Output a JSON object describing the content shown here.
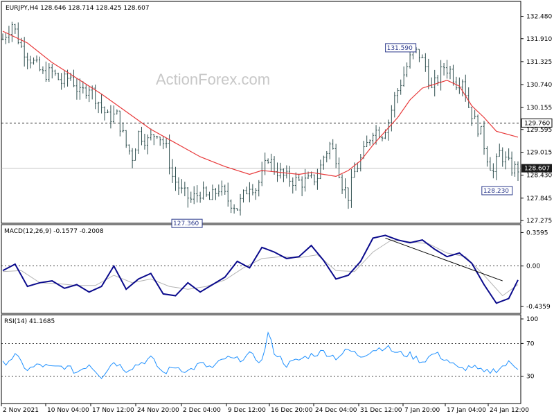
{
  "header": {
    "main": "EURJPY,H4  128.646 128.714 128.425 128.607",
    "macd": "MACD(12,26,9) -0.1577 -0.2008",
    "rsi": "RSI(14) 41.1685"
  },
  "watermark": "ActionForex.com",
  "colors": {
    "price_bars": "#2f4f4f",
    "sma": "#e8393a",
    "macd_line": "#0a0a8c",
    "signal_line": "#b4b4b4",
    "rsi_line": "#1e90ff",
    "last_price_bg": "#1a1a1a",
    "annotation_border": "#2c3a8c"
  },
  "chart_data": [
    {
      "type": "ohlc",
      "symbol": "EURJPY",
      "timeframe": "H4",
      "yticks": [
        "132.480",
        "131.910",
        "131.325",
        "130.740",
        "130.155",
        "129.595",
        "129.015",
        "128.430",
        "127.845",
        "127.275"
      ],
      "ylim": [
        127.275,
        132.79
      ],
      "xticks": [
        "2 Nov 2021",
        "10 Nov 04:00",
        "17 Nov 12:00",
        "24 Nov 20:00",
        "2 Dec 04:00",
        "9 Dec 12:00",
        "16 Dec 20:00",
        "24 Dec 04:00",
        "31 Dec 12:00",
        "7 Jan 20:00",
        "17 Jan 04:00",
        "24 Jan 12:00"
      ],
      "last_price": "128.607",
      "horizontal_level": "129.760",
      "annotations": [
        "131.590",
        "127.360",
        "128.230"
      ],
      "close_path": [
        [
          0,
          131.9
        ],
        [
          3,
          132.3
        ],
        [
          6,
          131.7
        ],
        [
          10,
          131.3
        ],
        [
          13,
          131.0
        ],
        [
          16,
          131.05
        ],
        [
          19,
          130.8
        ],
        [
          22,
          130.95
        ],
        [
          25,
          130.5
        ],
        [
          28,
          130.7
        ],
        [
          31,
          130.3
        ],
        [
          34,
          129.9
        ],
        [
          37,
          129.95
        ],
        [
          40,
          129.2
        ],
        [
          42,
          128.9
        ],
        [
          44,
          129.5
        ],
        [
          47,
          129.3
        ],
        [
          50,
          129.55
        ],
        [
          53,
          129.1
        ],
        [
          55,
          128.4
        ],
        [
          58,
          128.0
        ],
        [
          61,
          127.8
        ],
        [
          64,
          128.0
        ],
        [
          67,
          127.8
        ],
        [
          70,
          128.1
        ],
        [
          73,
          127.8
        ],
        [
          76,
          127.6
        ],
        [
          78,
          127.9
        ],
        [
          80,
          128.2
        ],
        [
          82,
          128.1
        ],
        [
          84,
          128.4
        ],
        [
          86,
          128.9
        ],
        [
          88,
          128.6
        ],
        [
          91,
          128.4
        ],
        [
          94,
          128.3
        ],
        [
          97,
          128.25
        ],
        [
          100,
          128.3
        ],
        [
          102,
          128.4
        ],
        [
          104,
          128.9
        ],
        [
          106,
          129.2
        ],
        [
          108,
          128.9
        ],
        [
          110,
          128.2
        ],
        [
          112,
          127.9
        ],
        [
          114,
          128.5
        ],
        [
          117,
          129.0
        ],
        [
          120,
          129.6
        ],
        [
          123,
          129.5
        ],
        [
          125,
          129.8
        ],
        [
          127,
          130.4
        ],
        [
          129,
          130.8
        ],
        [
          131,
          131.2
        ],
        [
          133,
          131.6
        ],
        [
          135,
          131.5
        ],
        [
          137,
          131.2
        ],
        [
          139,
          130.6
        ],
        [
          141,
          130.9
        ],
        [
          143,
          131.2
        ],
        [
          145,
          131.1
        ],
        [
          147,
          130.8
        ],
        [
          149,
          130.9
        ],
        [
          151,
          130.2
        ],
        [
          153,
          129.8
        ],
        [
          155,
          129.5
        ],
        [
          157,
          128.9
        ],
        [
          159,
          128.5
        ],
        [
          161,
          129.0
        ],
        [
          163,
          128.8
        ],
        [
          165,
          128.6
        ],
        [
          167,
          128.6
        ]
      ],
      "sma_path": [
        [
          0,
          132.1
        ],
        [
          8,
          131.8
        ],
        [
          16,
          131.3
        ],
        [
          24,
          130.9
        ],
        [
          32,
          130.5
        ],
        [
          40,
          130.05
        ],
        [
          48,
          129.6
        ],
        [
          56,
          129.25
        ],
        [
          64,
          128.9
        ],
        [
          72,
          128.65
        ],
        [
          80,
          128.45
        ],
        [
          84,
          128.55
        ],
        [
          90,
          128.5
        ],
        [
          96,
          128.45
        ],
        [
          100,
          128.5
        ],
        [
          104,
          128.45
        ],
        [
          108,
          128.4
        ],
        [
          112,
          128.55
        ],
        [
          116,
          128.8
        ],
        [
          120,
          129.2
        ],
        [
          124,
          129.55
        ],
        [
          128,
          129.9
        ],
        [
          132,
          130.35
        ],
        [
          136,
          130.65
        ],
        [
          140,
          130.75
        ],
        [
          144,
          130.85
        ],
        [
          148,
          130.7
        ],
        [
          152,
          130.2
        ],
        [
          156,
          129.9
        ],
        [
          160,
          129.55
        ],
        [
          167,
          129.4
        ]
      ]
    },
    {
      "type": "line",
      "name": "MACD(12,26,9)",
      "yticks": [
        "0.3595",
        "0.00",
        "-0.4359"
      ],
      "ylim": [
        -0.48,
        0.4
      ],
      "zero_label": "0.00",
      "series": [
        {
          "name": "MACD",
          "points": [
            [
              0,
              -0.05
            ],
            [
              4,
              0.02
            ],
            [
              8,
              -0.22
            ],
            [
              12,
              -0.18
            ],
            [
              16,
              -0.16
            ],
            [
              20,
              -0.24
            ],
            [
              24,
              -0.2
            ],
            [
              28,
              -0.28
            ],
            [
              32,
              -0.22
            ],
            [
              36,
              0.0
            ],
            [
              40,
              -0.25
            ],
            [
              44,
              -0.14
            ],
            [
              48,
              -0.08
            ],
            [
              52,
              -0.3
            ],
            [
              56,
              -0.32
            ],
            [
              60,
              -0.18
            ],
            [
              64,
              -0.28
            ],
            [
              68,
              -0.2
            ],
            [
              72,
              -0.12
            ],
            [
              76,
              0.05
            ],
            [
              80,
              -0.02
            ],
            [
              84,
              0.2
            ],
            [
              88,
              0.15
            ],
            [
              92,
              0.08
            ],
            [
              96,
              0.1
            ],
            [
              100,
              0.22
            ],
            [
              104,
              0.06
            ],
            [
              108,
              -0.14
            ],
            [
              112,
              -0.1
            ],
            [
              116,
              0.05
            ],
            [
              120,
              0.3
            ],
            [
              124,
              0.33
            ],
            [
              128,
              0.28
            ],
            [
              132,
              0.25
            ],
            [
              136,
              0.28
            ],
            [
              140,
              0.18
            ],
            [
              144,
              0.1
            ],
            [
              148,
              0.14
            ],
            [
              152,
              0.03
            ],
            [
              156,
              -0.2
            ],
            [
              160,
              -0.4
            ],
            [
              164,
              -0.35
            ],
            [
              167,
              -0.15
            ]
          ]
        },
        {
          "name": "Signal",
          "points": [
            [
              0,
              -0.06
            ],
            [
              6,
              -0.05
            ],
            [
              12,
              -0.18
            ],
            [
              18,
              -0.19
            ],
            [
              24,
              -0.21
            ],
            [
              30,
              -0.21
            ],
            [
              36,
              -0.1
            ],
            [
              42,
              -0.18
            ],
            [
              48,
              -0.14
            ],
            [
              54,
              -0.22
            ],
            [
              60,
              -0.25
            ],
            [
              66,
              -0.22
            ],
            [
              72,
              -0.15
            ],
            [
              78,
              -0.02
            ],
            [
              84,
              0.08
            ],
            [
              90,
              0.1
            ],
            [
              96,
              0.09
            ],
            [
              102,
              0.12
            ],
            [
              108,
              -0.05
            ],
            [
              114,
              -0.06
            ],
            [
              120,
              0.15
            ],
            [
              126,
              0.28
            ],
            [
              132,
              0.26
            ],
            [
              138,
              0.24
            ],
            [
              144,
              0.14
            ],
            [
              150,
              0.1
            ],
            [
              156,
              -0.1
            ],
            [
              162,
              -0.32
            ],
            [
              167,
              -0.2
            ]
          ]
        }
      ],
      "trendline": [
        [
          124,
          0.3
        ],
        [
          162,
          -0.16
        ]
      ]
    },
    {
      "type": "line",
      "name": "RSI(14)",
      "yticks": [
        "100",
        "70",
        "30"
      ],
      "ylim": [
        0,
        100
      ],
      "levels": [
        70,
        30
      ],
      "series": [
        {
          "name": "RSI",
          "points": [
            [
              0,
              45
            ],
            [
              4,
              55
            ],
            [
              8,
              38
            ],
            [
              12,
              44
            ],
            [
              16,
              40
            ],
            [
              20,
              42
            ],
            [
              24,
              35
            ],
            [
              28,
              45
            ],
            [
              32,
              30
            ],
            [
              36,
              48
            ],
            [
              40,
              38
            ],
            [
              44,
              45
            ],
            [
              48,
              52
            ],
            [
              52,
              34
            ],
            [
              56,
              42
            ],
            [
              60,
              36
            ],
            [
              64,
              45
            ],
            [
              68,
              40
            ],
            [
              72,
              52
            ],
            [
              76,
              50
            ],
            [
              80,
              56
            ],
            [
              84,
              48
            ],
            [
              86,
              82
            ],
            [
              88,
              60
            ],
            [
              92,
              44
            ],
            [
              96,
              50
            ],
            [
              100,
              56
            ],
            [
              104,
              60
            ],
            [
              108,
              53
            ],
            [
              112,
              62
            ],
            [
              116,
              55
            ],
            [
              120,
              62
            ],
            [
              124,
              66
            ],
            [
              128,
              58
            ],
            [
              132,
              56
            ],
            [
              136,
              48
            ],
            [
              140,
              58
            ],
            [
              144,
              50
            ],
            [
              148,
              38
            ],
            [
              152,
              42
            ],
            [
              156,
              34
            ],
            [
              160,
              38
            ],
            [
              164,
              46
            ],
            [
              167,
              41
            ]
          ]
        }
      ]
    }
  ]
}
